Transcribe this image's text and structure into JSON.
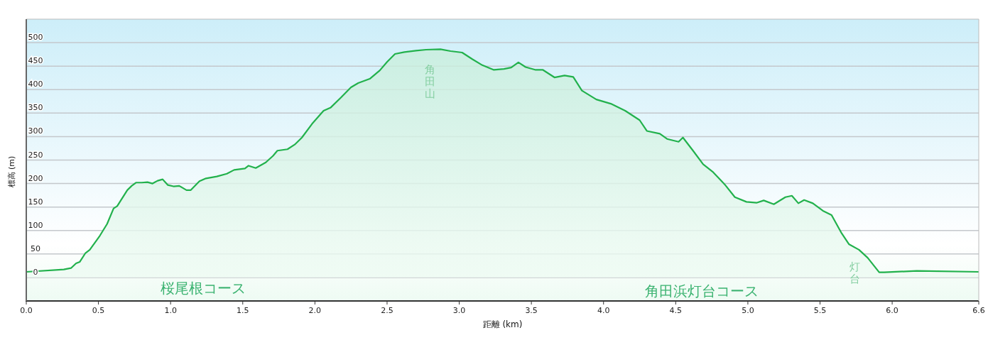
{
  "chart_data": {
    "type": "area",
    "xlabel": "距離 (km)",
    "ylabel": "標高 (m)",
    "xlim": [
      0,
      6.6
    ],
    "xticks": [
      {
        "value": 0,
        "label": "0.0"
      },
      0.5,
      {
        "value": 1,
        "label": "1.0"
      },
      1.5,
      {
        "value": 2,
        "label": "2.0"
      },
      2.5,
      {
        "value": 3,
        "label": "3.0"
      },
      3.5,
      {
        "value": 4,
        "label": "4.0"
      },
      4.5,
      {
        "value": 5,
        "label": "5.0"
      },
      5.5,
      {
        "value": 6,
        "label": "6.0"
      },
      6.6
    ],
    "ylim": [
      -50,
      550
    ],
    "yticks": [
      0,
      50,
      100,
      150,
      200,
      250,
      300,
      350,
      400,
      450,
      500
    ],
    "grid": "y",
    "series": [
      {
        "color": "#22b14c",
        "x": [
          0,
          0.26,
          0.31,
          0.345,
          0.37,
          0.41,
          0.44,
          0.51,
          0.56,
          0.605,
          0.63,
          0.7,
          0.73,
          0.76,
          0.8,
          0.84,
          0.875,
          0.91,
          0.945,
          0.98,
          1.02,
          1.06,
          1.11,
          1.14,
          1.2,
          1.245,
          1.32,
          1.39,
          1.44,
          1.515,
          1.54,
          1.59,
          1.66,
          1.71,
          1.74,
          1.81,
          1.86,
          1.91,
          1.98,
          2.06,
          2.11,
          2.18,
          2.25,
          2.3,
          2.38,
          2.45,
          2.5,
          2.555,
          2.62,
          2.7,
          2.77,
          2.87,
          2.94,
          3.02,
          3.09,
          3.16,
          3.24,
          3.31,
          3.36,
          3.41,
          3.46,
          3.53,
          3.58,
          3.66,
          3.73,
          3.79,
          3.85,
          3.95,
          4.05,
          4.15,
          4.25,
          4.3,
          4.39,
          4.44,
          4.52,
          4.55,
          4.62,
          4.69,
          4.76,
          4.84,
          4.91,
          4.99,
          5.06,
          5.11,
          5.18,
          5.26,
          5.305,
          5.35,
          5.39,
          5.45,
          5.52,
          5.58,
          5.65,
          5.7,
          5.77,
          5.83,
          5.91,
          5.945,
          6.17,
          6.6
        ],
        "values": [
          12,
          17,
          20,
          30,
          33,
          52,
          59,
          89,
          114,
          147,
          152,
          186,
          195,
          202,
          202,
          203,
          200,
          206,
          209,
          197,
          194,
          195,
          186,
          186,
          205,
          211,
          215,
          221,
          229,
          232,
          238,
          233,
          245,
          259,
          270,
          273,
          283,
          298,
          327,
          355,
          362,
          383,
          405,
          414,
          423,
          441,
          459,
          476,
          480,
          483,
          485,
          486,
          482,
          479,
          465,
          452,
          442,
          444,
          447,
          458,
          448,
          442,
          442,
          426,
          430,
          427,
          398,
          379,
          370,
          355,
          335,
          312,
          306,
          295,
          289,
          298,
          270,
          241,
          224,
          198,
          171,
          161,
          159,
          164,
          156,
          171,
          174,
          158,
          165,
          158,
          142,
          133,
          94,
          71,
          59,
          42,
          11,
          11,
          14,
          12
        ]
      }
    ],
    "annotations": [
      "角田山",
      "灯台",
      "桜尾根コース",
      "角田浜灯台コース"
    ]
  }
}
